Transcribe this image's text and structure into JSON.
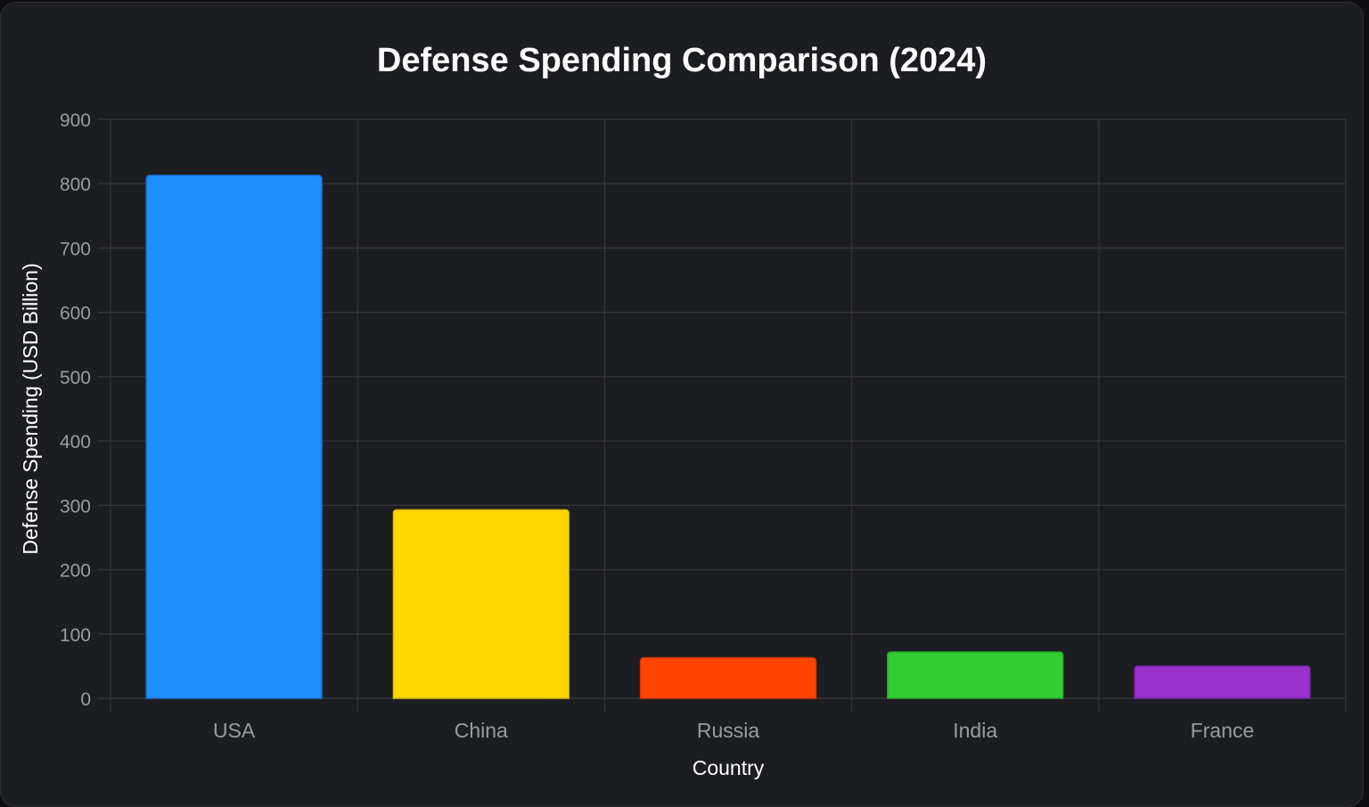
{
  "chart_data": {
    "type": "bar",
    "title": "Defense Spending Comparison (2024)",
    "xlabel": "Country",
    "ylabel": "Defense Spending (USD Billion)",
    "categories": [
      "USA",
      "China",
      "Russia",
      "India",
      "France"
    ],
    "values": [
      813,
      293,
      63,
      72,
      50
    ],
    "colors": [
      "#1e8fff",
      "#ffd700",
      "#ff4500",
      "#33cc33",
      "#9932cc"
    ],
    "border_colors": [
      "#1a6fd0",
      "#d4b400",
      "#d23a00",
      "#28a828",
      "#7a22a8"
    ],
    "ylim": [
      0,
      900
    ],
    "yticks": [
      0,
      100,
      200,
      300,
      400,
      500,
      600,
      700,
      800,
      900
    ],
    "grid": true,
    "legend": "none"
  }
}
